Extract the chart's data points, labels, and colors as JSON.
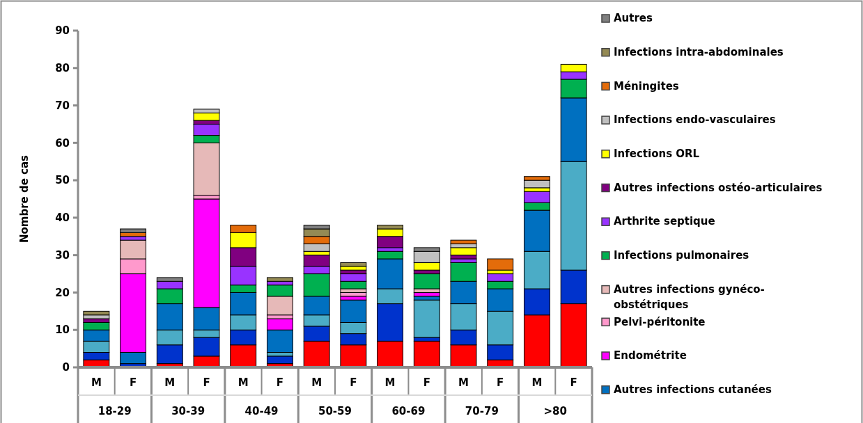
{
  "chart_data": {
    "type": "bar",
    "stacked": true,
    "ylabel": "Nombre de cas",
    "categories": [
      "M",
      "F",
      "M",
      "F",
      "M",
      "F",
      "M",
      "F",
      "M",
      "F",
      "M",
      "F",
      "M",
      "F"
    ],
    "annotations": [
      "18-29",
      "30-39",
      "40-49",
      "50-59",
      "60-69",
      "70-79",
      ">80"
    ],
    "ylim": [
      0,
      90
    ],
    "yticks": [
      0,
      10,
      20,
      30,
      40,
      50,
      60,
      70,
      80,
      90
    ],
    "grid": false,
    "legend": "right",
    "series": [
      {
        "color": "#ff0000",
        "values": [
          2,
          0,
          1,
          3,
          6,
          1,
          7,
          6,
          7,
          7,
          6,
          2,
          14,
          17
        ]
      },
      {
        "color": "#0033cc",
        "values": [
          2,
          1,
          5,
          5,
          4,
          2,
          4,
          3,
          10,
          1,
          4,
          4,
          7,
          9
        ]
      },
      {
        "color": "#4bacc6",
        "values": [
          3,
          0,
          4,
          2,
          4,
          1,
          3,
          3,
          4,
          10,
          7,
          9,
          10,
          29
        ]
      },
      {
        "name": "Autres infections cutanées",
        "color": "#0070c0",
        "values": [
          3,
          3,
          7,
          6,
          6,
          6,
          5,
          6,
          8,
          1,
          6,
          6,
          11,
          17
        ]
      },
      {
        "name": "Endométrite",
        "color": "#ff00ff",
        "values": [
          0,
          21,
          0,
          29,
          0,
          3,
          0,
          1,
          0,
          1,
          0,
          0,
          0,
          0
        ]
      },
      {
        "name": "Pelvi-péritonite",
        "color": "#ff99cc",
        "values": [
          0,
          4,
          0,
          1,
          0,
          1,
          0,
          1,
          0,
          0,
          0,
          0,
          0,
          0
        ]
      },
      {
        "name": "Autres infections gynéco-obstétriques",
        "color": "#e6b9b8",
        "values": [
          0,
          5,
          0,
          14,
          0,
          5,
          0,
          1,
          0,
          1,
          0,
          0,
          0,
          0
        ]
      },
      {
        "name": "Infections pulmonaires",
        "color": "#00b050",
        "values": [
          2,
          0,
          4,
          2,
          2,
          3,
          6,
          2,
          2,
          4,
          5,
          2,
          2,
          5
        ]
      },
      {
        "name": "Arthrite septique",
        "color": "#9933ff",
        "values": [
          0,
          1,
          2,
          3,
          5,
          1,
          2,
          2,
          1,
          0,
          1,
          2,
          3,
          2
        ]
      },
      {
        "name": "Autres infections ostéo-articulaires",
        "color": "#800080",
        "values": [
          1,
          0,
          0,
          1,
          5,
          0,
          3,
          1,
          3,
          1,
          1,
          0,
          0,
          0
        ]
      },
      {
        "name": "Infections ORL",
        "color": "#ffff00",
        "values": [
          0,
          0,
          0,
          2,
          4,
          0,
          1,
          1,
          2,
          2,
          2,
          1,
          1,
          2
        ]
      },
      {
        "name": "Infections endo-vasculaires",
        "color": "#c0c0c0",
        "values": [
          1,
          0,
          0,
          1,
          0,
          0,
          2,
          0,
          0,
          3,
          1,
          0,
          2,
          0
        ]
      },
      {
        "name": "Méningites",
        "color": "#e46c0a",
        "values": [
          0,
          1,
          0,
          0,
          2,
          0,
          2,
          0,
          0,
          0,
          1,
          3,
          1,
          0
        ]
      },
      {
        "name": "Infections intra-abdominales",
        "color": "#948a54",
        "values": [
          1,
          0,
          0,
          0,
          0,
          1,
          2,
          1,
          1,
          0,
          0,
          0,
          0,
          0
        ]
      },
      {
        "name": "Autres",
        "color": "#808080",
        "values": [
          0,
          1,
          1,
          0,
          0,
          0,
          1,
          0,
          0,
          1,
          0,
          0,
          0,
          0
        ]
      }
    ]
  }
}
